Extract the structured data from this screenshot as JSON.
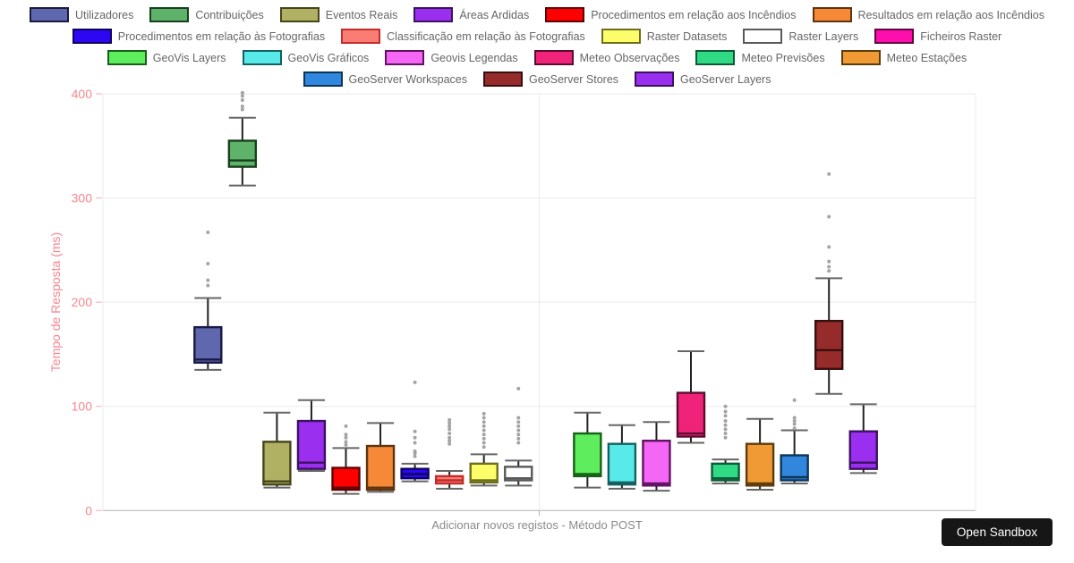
{
  "sandbox_button": {
    "label": "Open Sandbox"
  },
  "chart_data": {
    "type": "boxplot",
    "title": "",
    "xlabel": "Adicionar novos registos - Método POST",
    "ylabel": "Tempo de Resposta (ms)",
    "categories": [
      "Adicionar novos registos - Método POST"
    ],
    "ylim": [
      0,
      400
    ],
    "yticks": [
      0,
      100,
      200,
      300,
      400
    ],
    "grid": true,
    "legend_position": "top",
    "axis_color": "#f9868e",
    "tick_mark_color": "#f3abb0",
    "grid_color": "#ebebeb",
    "axis_line_color": "#b2b2b2",
    "outlier_color": "#9a9a9a",
    "whisker_color": "#222222",
    "cap_color": "#666666",
    "legend_text_color": "#666666",
    "series": [
      {
        "name": "Utilizadores",
        "fill": "#5f68ae",
        "border": "#191942",
        "low": 135,
        "q1": 142,
        "median": 145,
        "q3": 176,
        "high": 204,
        "outliers": [
          216,
          221,
          237,
          267
        ]
      },
      {
        "name": "Contribuições",
        "fill": "#5fb269",
        "border": "#173f1d",
        "low": 312,
        "q1": 330,
        "median": 336,
        "q3": 355,
        "high": 377,
        "outliers": [
          385,
          388,
          394,
          398,
          401
        ]
      },
      {
        "name": "Eventos Reais",
        "fill": "#b1b164",
        "border": "#45451a",
        "low": 22,
        "q1": 25,
        "median": 28,
        "q3": 66,
        "high": 94,
        "outliers": []
      },
      {
        "name": "Áreas Ardidas",
        "fill": "#9a2ff0",
        "border": "#3c1260",
        "low": 38,
        "q1": 40,
        "median": 46,
        "q3": 86,
        "high": 106,
        "outliers": []
      },
      {
        "name": "Procedimentos em relação aos Incêndios",
        "fill": "#fe0000",
        "border": "#600000",
        "low": 16,
        "q1": 20,
        "median": 22,
        "q3": 41,
        "high": 60,
        "outliers": [
          63,
          66,
          70,
          73,
          81
        ]
      },
      {
        "name": "Resultados em relação aos Incêndios",
        "fill": "#f58938",
        "border": "#5e340e",
        "low": 18,
        "q1": 20,
        "median": 22,
        "q3": 62,
        "high": 84,
        "outliers": []
      },
      {
        "name": "Procedimentos em relação às Fotografias",
        "fill": "#2d07f2",
        "border": "#0d0260",
        "low": 28,
        "q1": 31,
        "median": 35,
        "q3": 40,
        "high": 45,
        "outliers": [
          52,
          55,
          57,
          65,
          70,
          76,
          123
        ]
      },
      {
        "name": "Classificação em relação às Fotografias",
        "fill": "#f97d72",
        "border": "#c22c2c",
        "low": 21,
        "q1": 26,
        "median": 29,
        "q3": 33,
        "high": 38,
        "outliers": [
          64,
          67,
          70,
          74,
          78,
          81,
          84,
          87
        ]
      },
      {
        "name": "Raster Datasets",
        "fill": "#fdfd6b",
        "border": "#6e6e1c",
        "low": 24,
        "q1": 27,
        "median": 29,
        "q3": 45,
        "high": 54,
        "outliers": [
          61,
          65,
          69,
          73,
          77,
          81,
          85,
          89,
          93
        ]
      },
      {
        "name": "Raster Layers",
        "fill": "#ffffff",
        "border": "#595959",
        "low": 24,
        "q1": 29,
        "median": 31,
        "q3": 42,
        "high": 48,
        "outliers": [
          65,
          69,
          73,
          77,
          81,
          85,
          89,
          117
        ]
      },
      {
        "name": "Ficheiros Raster",
        "fill": "#fb0fad",
        "border": "#60053f",
        "low": null,
        "q1": null,
        "median": null,
        "q3": null,
        "high": null,
        "outliers": []
      },
      {
        "name": "GeoVis Layers",
        "fill": "#5ded5d",
        "border": "#186018",
        "low": 22,
        "q1": 33,
        "median": 35,
        "q3": 74,
        "high": 94,
        "outliers": []
      },
      {
        "name": "GeoVis Gráficos",
        "fill": "#58e9e9",
        "border": "#156161",
        "low": 21,
        "q1": 25,
        "median": 27,
        "q3": 64,
        "high": 82,
        "outliers": []
      },
      {
        "name": "Geovis Legendas",
        "fill": "#f467f4",
        "border": "#611261",
        "low": 19,
        "q1": 24,
        "median": 26,
        "q3": 67,
        "high": 85,
        "outliers": []
      },
      {
        "name": "Meteo Observações",
        "fill": "#ef2379",
        "border": "#5c0d2f",
        "low": 65,
        "q1": 71,
        "median": 74,
        "q3": 113,
        "high": 153,
        "outliers": []
      },
      {
        "name": "Meteo Previsões",
        "fill": "#30da85",
        "border": "#0d5a36",
        "low": 26,
        "q1": 29,
        "median": 31,
        "q3": 45,
        "high": 49,
        "outliers": [
          70,
          74,
          78,
          82,
          86,
          91,
          95,
          100
        ]
      },
      {
        "name": "Meteo Estações",
        "fill": "#ef9a34",
        "border": "#5e3b0d",
        "low": 20,
        "q1": 24,
        "median": 26,
        "q3": 64,
        "high": 88,
        "outliers": []
      },
      {
        "name": "GeoServer Workspaces",
        "fill": "#3187de",
        "border": "#0d3558",
        "low": 26,
        "q1": 29,
        "median": 32,
        "q3": 53,
        "high": 77,
        "outliers": [
          79,
          83,
          86,
          89,
          106
        ]
      },
      {
        "name": "GeoServer Stores",
        "fill": "#952b2b",
        "border": "#380f0f",
        "low": 112,
        "q1": 136,
        "median": 154,
        "q3": 182,
        "high": 223,
        "outliers": [
          230,
          234,
          239,
          253,
          282,
          323
        ]
      },
      {
        "name": "GeoServer Layers",
        "fill": "#9a2ff0",
        "border": "#3c1260",
        "low": 36,
        "q1": 40,
        "median": 46,
        "q3": 76,
        "high": 102,
        "outliers": []
      }
    ]
  }
}
